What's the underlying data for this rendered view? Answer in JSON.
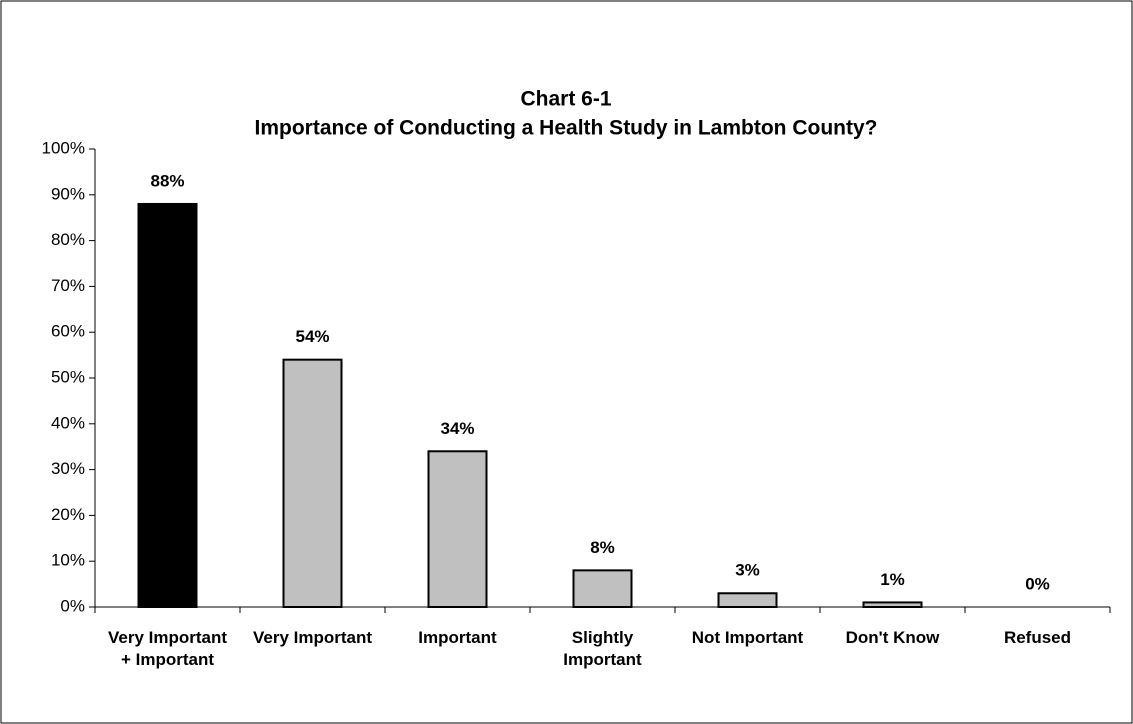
{
  "chart_data": {
    "type": "bar",
    "title": "Chart 6-1",
    "subtitle": "Importance of Conducting a Health Study in Lambton County?",
    "categories": [
      "Very Important + Important",
      "Very Important",
      "Important",
      "Slightly Important",
      "Not Important",
      "Don't Know",
      "Refused"
    ],
    "values": [
      88,
      54,
      34,
      8,
      3,
      1,
      0
    ],
    "value_labels": [
      "88%",
      "54%",
      "34%",
      "8%",
      "3%",
      "1%",
      "0%"
    ],
    "colors": [
      "#000000",
      "#c0c0c0",
      "#c0c0c0",
      "#c0c0c0",
      "#c0c0c0",
      "#c0c0c0",
      "#c0c0c0"
    ],
    "ylim": [
      0,
      100
    ],
    "yticks": [
      {
        "value": 0,
        "label": "0%"
      },
      {
        "value": 10,
        "label": "10%"
      },
      {
        "value": 20,
        "label": "20%"
      },
      {
        "value": 30,
        "label": "30%"
      },
      {
        "value": 40,
        "label": "40%"
      },
      {
        "value": 50,
        "label": "50%"
      },
      {
        "value": 60,
        "label": "60%"
      },
      {
        "value": 70,
        "label": "70%"
      },
      {
        "value": 80,
        "label": "80%"
      },
      {
        "value": 90,
        "label": "90%"
      },
      {
        "value": 100,
        "label": "100%"
      }
    ],
    "grid": false
  }
}
